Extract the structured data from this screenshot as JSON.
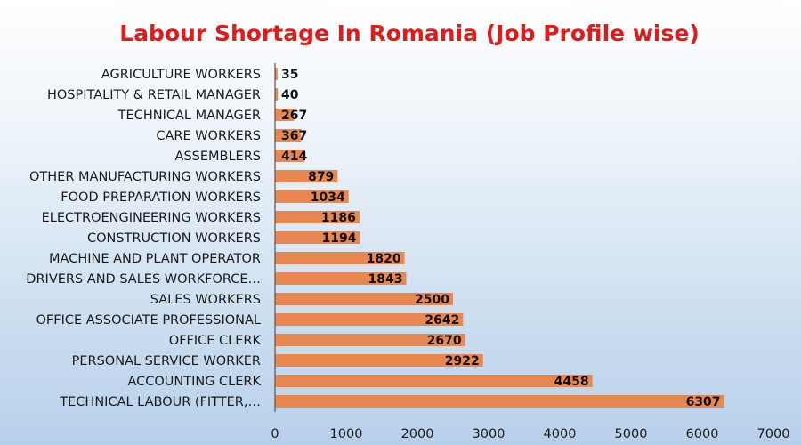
{
  "chart_data": {
    "type": "bar",
    "orientation": "horizontal",
    "title": "Labour Shortage In Romania (Job Profile wise)",
    "categories": [
      "AGRICULTURE WORKERS",
      "HOSPITALITY & RETAIL MANAGER",
      "TECHNICAL MANAGER",
      "CARE WORKERS",
      "ASSEMBLERS",
      "OTHER MANUFACTURING WORKERS",
      "FOOD PREPARATION WORKERS",
      "ELECTROENGINEERING WORKERS",
      "CONSTRUCTION WORKERS",
      "MACHINE AND PLANT OPERATOR",
      "DRIVERS AND SALES WORKFORCE…",
      "SALES WORKERS",
      "OFFICE ASSOCIATE PROFESSIONAL",
      "OFFICE CLERK",
      "PERSONAL SERVICE WORKER",
      "ACCOUNTING CLERK",
      "TECHNICAL LABOUR (FITTER,…"
    ],
    "values": [
      35,
      40,
      267,
      367,
      414,
      879,
      1034,
      1186,
      1194,
      1820,
      1843,
      2500,
      2642,
      2670,
      2922,
      4458,
      6307
    ],
    "xlim": [
      0,
      7000
    ],
    "xticks": [
      0,
      1000,
      2000,
      3000,
      4000,
      5000,
      6000,
      7000
    ],
    "xlabel": "",
    "ylabel": "",
    "grid": false,
    "legend": "none",
    "bar_color": "#e8874f",
    "title_color": "#e01b1b",
    "data_labels": true
  }
}
